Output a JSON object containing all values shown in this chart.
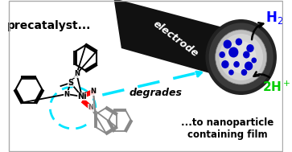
{
  "bg_color": "#ffffff",
  "precatalyst_text": "precatalyst...",
  "degrades_text": "degrades",
  "nanoparticle_text": "...to nanoparticle\ncontaining film",
  "electrode_text": "electrode",
  "h2_text": "H$_2$",
  "h2_color": "#0000ff",
  "2h_text": "2H$^+$",
  "2h_color": "#00cc00",
  "cyan_color": "#00e5ff",
  "red_color": "#ff0000",
  "gray_color": "#aaaaaa",
  "electrode_dark": "#111111",
  "electrode_ring": "#333333",
  "electrode_inner": "#c8c8c8",
  "dot_color": "#0000cc",
  "black": "#000000",
  "white": "#ffffff"
}
